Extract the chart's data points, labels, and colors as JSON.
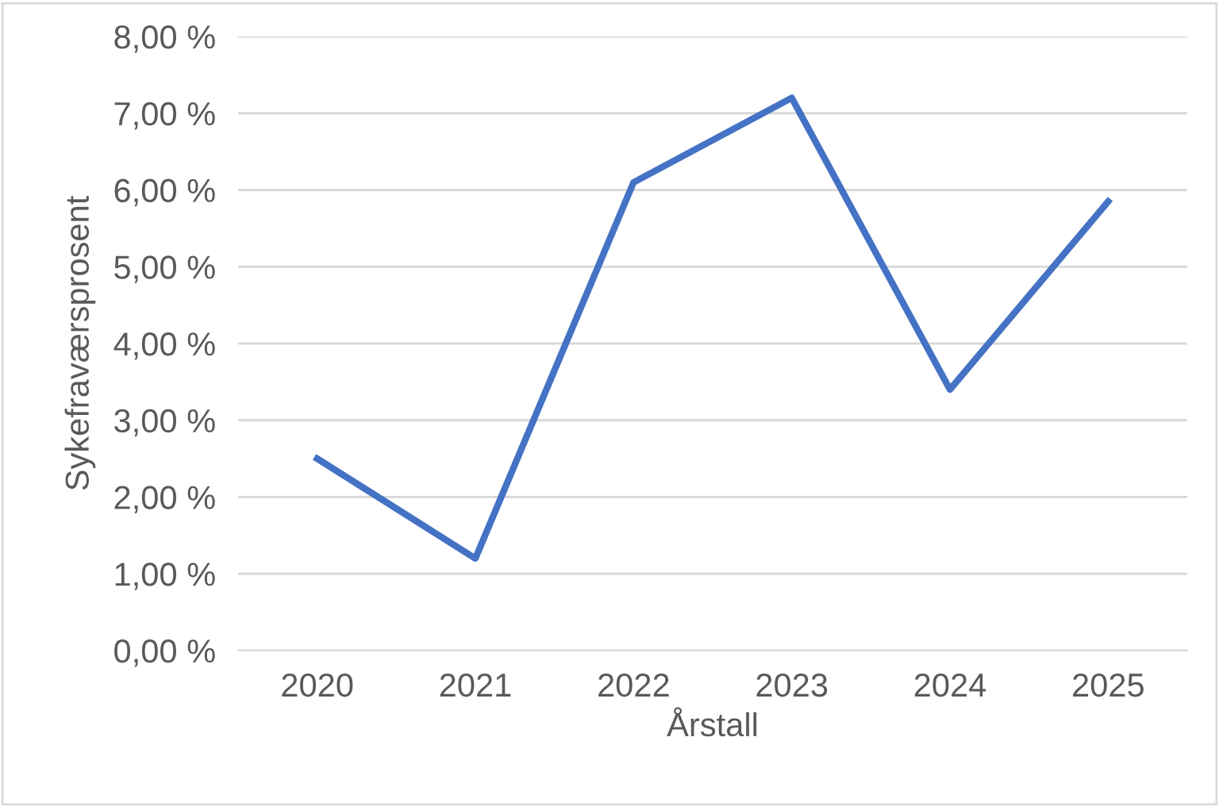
{
  "chart_data": {
    "type": "line",
    "xlabel": "Årstall",
    "ylabel": "Sykefraværsprosent",
    "categories": [
      "2020",
      "2021",
      "2022",
      "2023",
      "2024",
      "2025"
    ],
    "series": [
      {
        "color": "#4472c4",
        "values": [
          2.5,
          1.2,
          6.1,
          7.2,
          3.4,
          5.85
        ]
      }
    ],
    "ylim": [
      0,
      8
    ],
    "yticks": [
      {
        "value": 0,
        "label": "0,00 %"
      },
      {
        "value": 1,
        "label": "1,00 %"
      },
      {
        "value": 2,
        "label": "2,00 %"
      },
      {
        "value": 3,
        "label": "3,00 %"
      },
      {
        "value": 4,
        "label": "4,00 %"
      },
      {
        "value": 5,
        "label": "5,00 %"
      },
      {
        "value": 6,
        "label": "6,00 %"
      },
      {
        "value": 7,
        "label": "7,00 %"
      },
      {
        "value": 8,
        "label": "8,00 %"
      }
    ],
    "grid": "y",
    "legend": false,
    "marker": "none",
    "line_style": "solid"
  }
}
